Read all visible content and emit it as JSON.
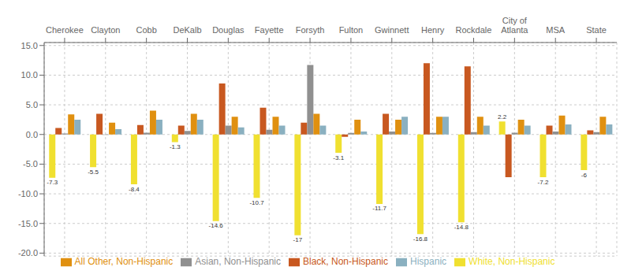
{
  "chart_data": {
    "type": "bar",
    "categories": [
      "Cherokee",
      "Clayton",
      "Cobb",
      "DeKalb",
      "Douglas",
      "Fayette",
      "Forsyth",
      "Fulton",
      "Gwinnett",
      "Henry",
      "Rockdale",
      "City of\nAtlanta",
      "MSA",
      "State"
    ],
    "series": [
      {
        "name": "White, Non-Hispanic",
        "color": "#f0e030",
        "data_labels": true,
        "values": [
          -7.3,
          -5.5,
          -8.4,
          -1.3,
          -14.6,
          -10.7,
          -17.0,
          -3.1,
          -11.7,
          -16.8,
          -14.8,
          2.2,
          -7.2,
          -6.0
        ]
      },
      {
        "name": "Black, Non-Hispanic",
        "color": "#c85820",
        "values": [
          1.1,
          3.5,
          1.6,
          1.5,
          8.6,
          4.5,
          2.0,
          -0.4,
          3.5,
          12.0,
          11.5,
          -7.2,
          1.5,
          0.7
        ]
      },
      {
        "name": "Asian, Non-Hispanic",
        "color": "#909090",
        "values": [
          0.15,
          -0.05,
          0.3,
          0.6,
          1.5,
          0.8,
          11.7,
          0.25,
          0.5,
          0.25,
          0.4,
          0.3,
          0.5,
          0.4
        ]
      },
      {
        "name": "All Other, Non-Hispanic",
        "color": "#e09010",
        "values": [
          3.4,
          2.0,
          4.0,
          3.5,
          3.0,
          3.0,
          3.5,
          2.5,
          2.5,
          3.0,
          3.0,
          2.5,
          3.2,
          3.0
        ]
      },
      {
        "name": "Hispanic",
        "color": "#8ab0c0",
        "values": [
          2.5,
          0.9,
          2.5,
          2.5,
          1.2,
          1.5,
          1.5,
          0.5,
          3.0,
          3.0,
          1.5,
          1.5,
          1.7,
          1.7
        ]
      }
    ],
    "ylim": [
      -20.5,
      15.5
    ],
    "yticks": [
      {
        "value": -20,
        "label": "-20.0"
      },
      {
        "value": -15,
        "label": "-15.0"
      },
      {
        "value": -10,
        "label": "-10.0"
      },
      {
        "value": -5,
        "label": "-5.0"
      },
      {
        "value": 0,
        "label": "0.0"
      },
      {
        "value": 5,
        "label": "5.0"
      },
      {
        "value": 10,
        "label": "10.0"
      },
      {
        "value": 15,
        "label": "15.0"
      }
    ],
    "grid": true,
    "legend": "bottom"
  }
}
